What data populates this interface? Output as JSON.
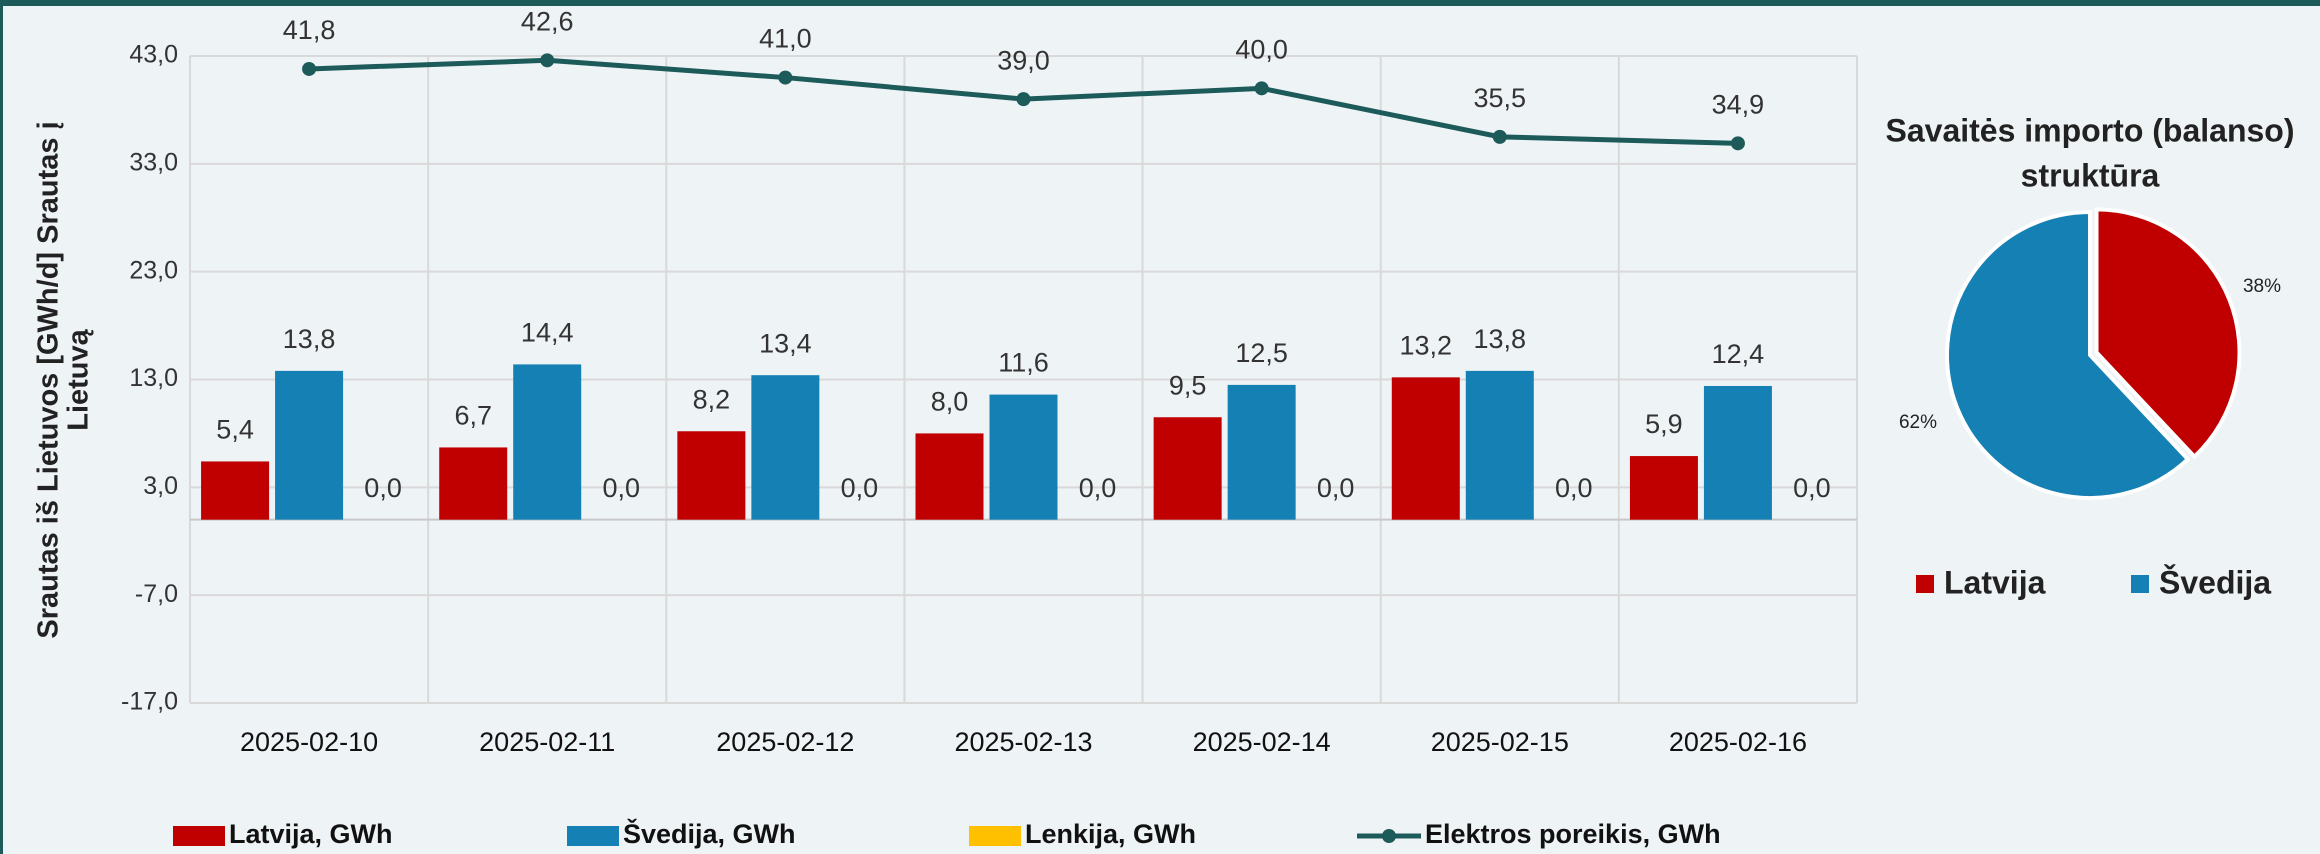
{
  "chart_data": [
    {
      "type": "bar",
      "y_label": [
        "Srautas iš Lietuvos [GWh/d] Srautas į",
        "Lietuvą"
      ],
      "categories": [
        "2025-02-10",
        "2025-02-11",
        "2025-02-12",
        "2025-02-13",
        "2025-02-14",
        "2025-02-15",
        "2025-02-16"
      ],
      "series": [
        {
          "name": "Latvija, GWh",
          "color": "#c00000",
          "type": "bar",
          "values": [
            5.4,
            6.7,
            8.2,
            8.0,
            9.5,
            13.2,
            5.9
          ],
          "value_labels": [
            "5,4",
            "6,7",
            "8,2",
            "8,0",
            "9,5",
            "13,2",
            "5,9"
          ]
        },
        {
          "name": "Švedija, GWh",
          "color": "#1580b4",
          "type": "bar",
          "values": [
            13.8,
            14.4,
            13.4,
            11.6,
            12.5,
            13.8,
            12.4
          ],
          "value_labels": [
            "13,8",
            "14,4",
            "13,4",
            "11,6",
            "12,5",
            "13,8",
            "12,4"
          ]
        },
        {
          "name": "Lenkija, GWh",
          "color": "#ffc000",
          "type": "bar",
          "values": [
            0,
            0,
            0,
            0,
            0,
            0,
            0
          ],
          "value_labels": [
            "0,0",
            "0,0",
            "0,0",
            "0,0",
            "0,0",
            "0,0",
            "0,0"
          ]
        },
        {
          "name": "Elektros poreikis, GWh",
          "color": "#1d5a5a",
          "type": "line",
          "values": [
            41.8,
            42.6,
            41.0,
            39.0,
            40.0,
            35.5,
            34.9
          ],
          "value_labels": [
            "41,8",
            "42,6",
            "41,0",
            "39,0",
            "40,0",
            "35,5",
            "34,9"
          ]
        }
      ],
      "ylim": [
        -17,
        43
      ],
      "yticks": [
        {
          "value": 43,
          "label": "43,0"
        },
        {
          "value": 33,
          "label": "33,0"
        },
        {
          "value": 23,
          "label": "23,0"
        },
        {
          "value": 13,
          "label": "13,0"
        },
        {
          "value": 3,
          "label": "3,0"
        },
        {
          "value": -7,
          "label": "-7,0"
        },
        {
          "value": -17,
          "label": "-17,0"
        }
      ],
      "grid": true,
      "legend": "bottom"
    },
    {
      "type": "pie",
      "title": [
        "Savaitės importo (balanso)",
        "struktūra"
      ],
      "categories": [
        "Latvija",
        "Švedija"
      ],
      "values": [
        38,
        62
      ],
      "value_labels": [
        "38%",
        "62%"
      ],
      "colors": [
        "#c00000",
        "#1580b4"
      ],
      "legend": "bottom"
    }
  ]
}
